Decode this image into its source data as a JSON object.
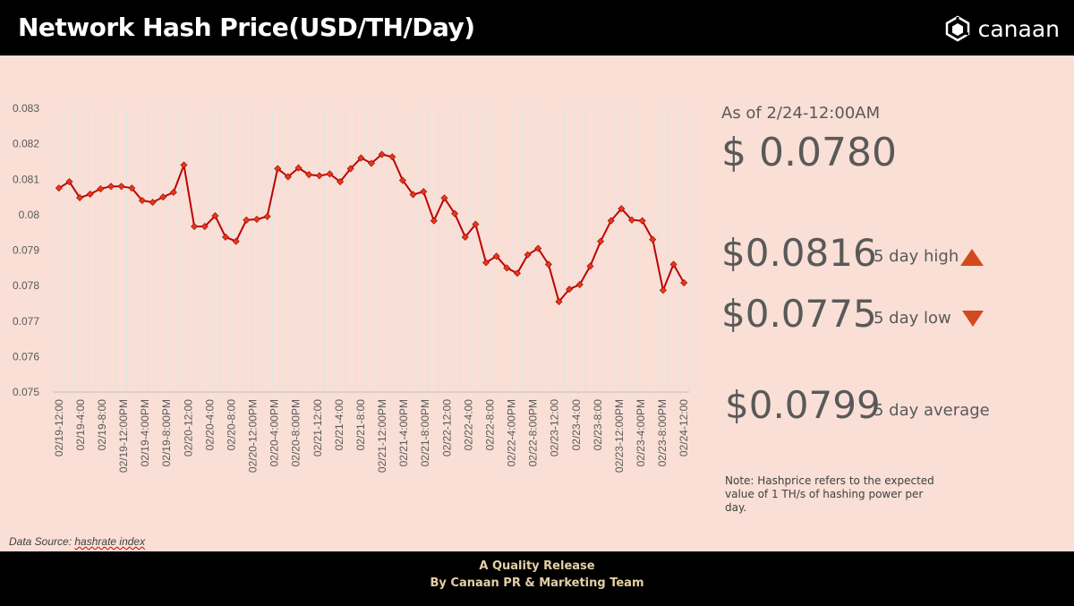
{
  "header": {
    "title": "Network Hash Price(USD/TH/Day)",
    "logo_text": "canaan"
  },
  "summary": {
    "as_of": "As of 2/24-12:00AM",
    "current": "$ 0.0780",
    "high_value": "$0.0816",
    "high_label": "5 day high",
    "low_value": "$0.0775",
    "low_label": "5 day low",
    "avg_value": "$0.0799",
    "avg_label": "5 day average",
    "note": "Note: Hashprice refers to the expected value of 1 TH/s of hashing power per day."
  },
  "source": {
    "prefix": "Data Source: ",
    "name": "hashrate index"
  },
  "footer": {
    "line1": "A Quality Release",
    "line2": "By Canaan PR & Marketing Team"
  },
  "colors": {
    "line": "#c00000",
    "marker": "#e03a1a",
    "accent": "#d24a1c",
    "background": "#f9dfd6"
  },
  "chart_data": {
    "type": "line",
    "ylim": [
      0.075,
      0.083
    ],
    "y_ticks": [
      "0.075",
      "0.076",
      "0.077",
      "0.078",
      "0.079",
      "0.08",
      "0.081",
      "0.082",
      "0.083"
    ],
    "x_labels": [
      "02/19-12:00",
      "02/19-4:00",
      "02/19-8:00",
      "02/19-12:00PM",
      "02/19-4:00PM",
      "02/19-8:00PM",
      "02/20-12:00",
      "02/20-4:00",
      "02/20-8:00",
      "02/20-12:00PM",
      "02/20-4:00PM",
      "02/20-8:00PM",
      "02/21-12:00",
      "02/21-4:00",
      "02/21-8:00",
      "02/21-12:00PM",
      "02/21-4:00PM",
      "02/21-8:00PM",
      "02/22-12:00",
      "02/22-4:00",
      "02/22-8:00",
      "02/22-4:00PM",
      "02/22-8:00PM",
      "02/23-12:00",
      "02/23-4:00",
      "02/23-8:00",
      "02/23-12:00PM",
      "02/23-4:00PM",
      "02/23-8:00PM",
      "02/24-12:00"
    ],
    "values": [
      0.08075,
      0.08093,
      0.08048,
      0.08058,
      0.08073,
      0.0808,
      0.0808,
      0.08075,
      0.0804,
      0.08035,
      0.0805,
      0.08063,
      0.0814,
      0.07967,
      0.07967,
      0.07997,
      0.07937,
      0.07925,
      0.07985,
      0.07987,
      0.07995,
      0.0813,
      0.08107,
      0.08132,
      0.08113,
      0.0811,
      0.08115,
      0.08093,
      0.0813,
      0.0816,
      0.08145,
      0.0817,
      0.08163,
      0.08097,
      0.08057,
      0.08065,
      0.07983,
      0.08047,
      0.08003,
      0.07937,
      0.07973,
      0.07865,
      0.07883,
      0.0785,
      0.07835,
      0.07887,
      0.07905,
      0.0786,
      0.07755,
      0.0779,
      0.07803,
      0.07855,
      0.07925,
      0.07983,
      0.08017,
      0.07985,
      0.07983,
      0.0793,
      0.07787,
      0.0786,
      0.07808
    ],
    "grid": true
  }
}
